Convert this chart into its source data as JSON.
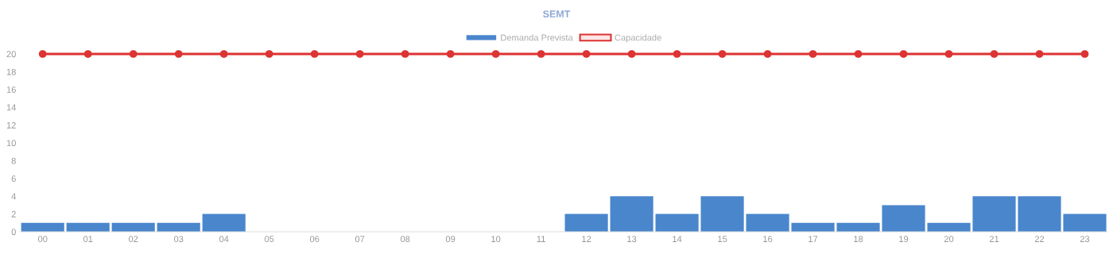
{
  "chart_data": {
    "type": "bar",
    "title": "SEMT",
    "categories": [
      "00",
      "01",
      "02",
      "03",
      "04",
      "05",
      "06",
      "07",
      "08",
      "09",
      "10",
      "11",
      "12",
      "13",
      "14",
      "15",
      "16",
      "17",
      "18",
      "19",
      "20",
      "21",
      "22",
      "23"
    ],
    "series": [
      {
        "name": "Demanda Prevista",
        "color": "#4a86cc",
        "values": [
          1,
          1,
          1,
          1,
          2,
          0,
          0,
          0,
          0,
          0,
          0,
          0,
          2,
          4,
          2,
          4,
          2,
          1,
          1,
          3,
          1,
          4,
          4,
          2
        ]
      },
      {
        "name": "Capacidade",
        "type": "line",
        "color": "#dd3333",
        "marker": "circle",
        "values": [
          20,
          20,
          20,
          20,
          20,
          20,
          20,
          20,
          20,
          20,
          20,
          20,
          20,
          20,
          20,
          20,
          20,
          20,
          20,
          20,
          20,
          20,
          20,
          20
        ]
      }
    ],
    "ylim": [
      0,
      20
    ],
    "yticks": [
      0,
      2,
      4,
      6,
      8,
      10,
      12,
      14,
      16,
      18,
      20
    ],
    "grid": false,
    "legend": "top"
  }
}
